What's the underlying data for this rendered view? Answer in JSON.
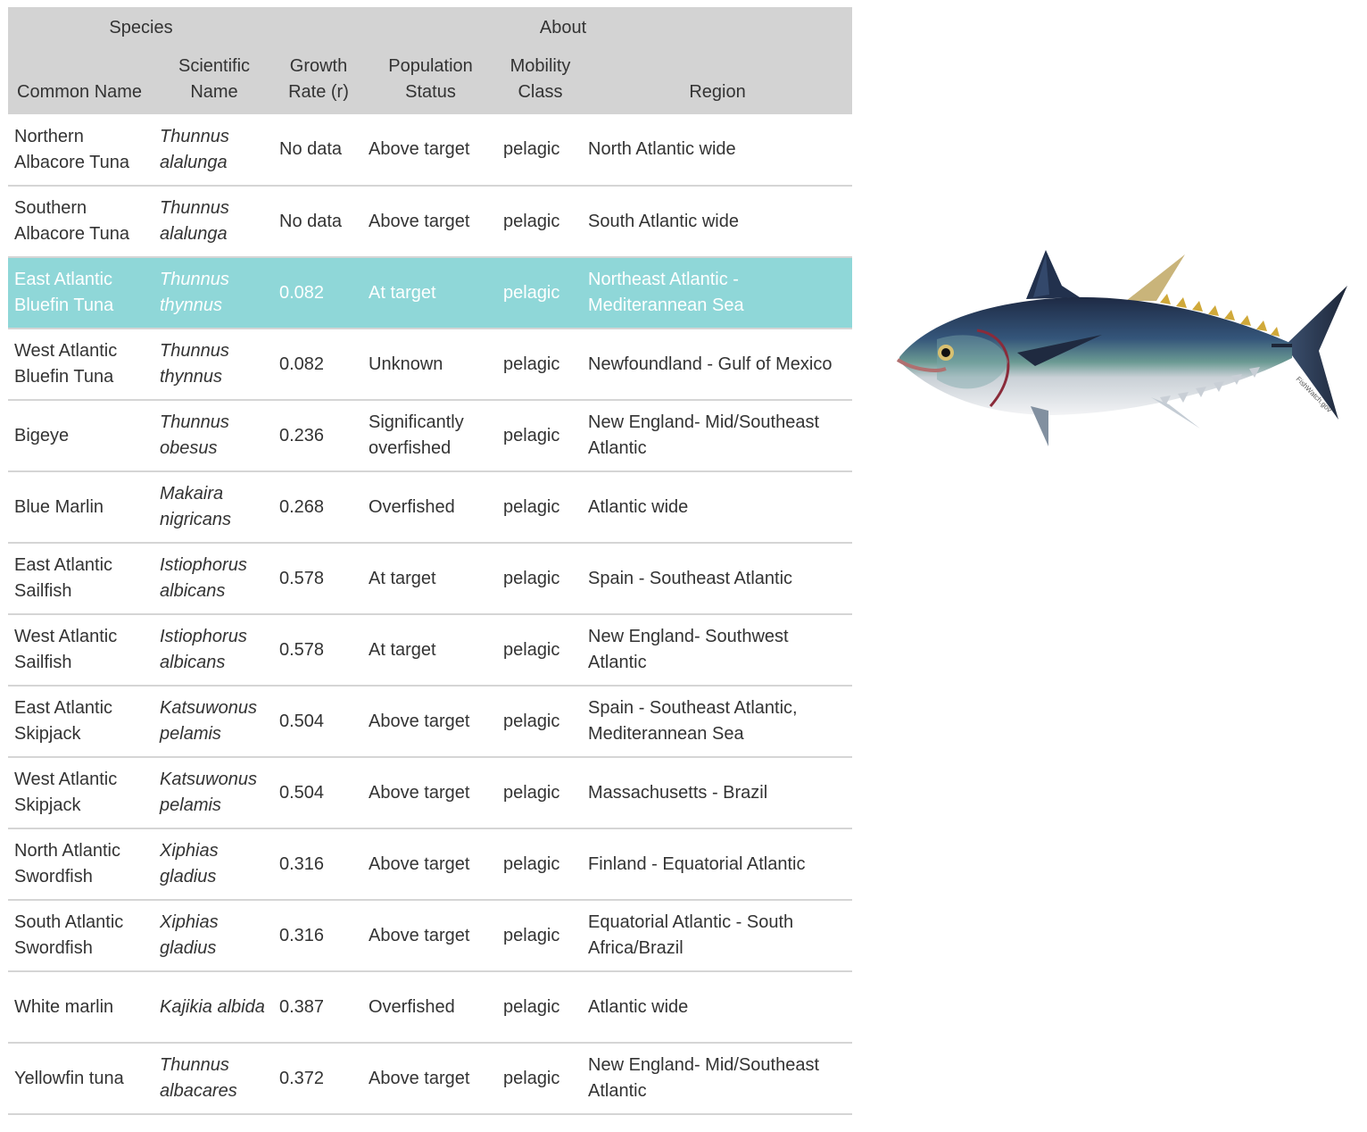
{
  "table": {
    "group_headers": {
      "species": "Species",
      "about": "About"
    },
    "columns": {
      "common_name": "Common Name",
      "scientific_name": "Scientific Name",
      "growth_rate": "Growth Rate (r)",
      "population_status": "Population Status",
      "mobility_class": "Mobility Class",
      "region": "Region"
    },
    "selected_row_index": 2,
    "selected_color": "#8fd7d8",
    "header_color": "#d3d3d3",
    "rows": [
      {
        "common": "Northern Albacore Tuna",
        "scientific": "Thunnus alalunga",
        "growth": "No data",
        "status": "Above target",
        "mobility": "pelagic",
        "region": "North Atlantic wide"
      },
      {
        "common": "Southern Albacore Tuna",
        "scientific": "Thunnus alalunga",
        "growth": "No data",
        "status": "Above target",
        "mobility": "pelagic",
        "region": "South Atlantic wide"
      },
      {
        "common": "East Atlantic Bluefin Tuna",
        "scientific": "Thunnus thynnus",
        "growth": "0.082",
        "status": "At target",
        "mobility": "pelagic",
        "region": "Northeast Atlantic - Mediterannean Sea"
      },
      {
        "common": "West Atlantic Bluefin Tuna",
        "scientific": "Thunnus thynnus",
        "growth": "0.082",
        "status": "Unknown",
        "mobility": "pelagic",
        "region": "Newfoundland - Gulf of Mexico"
      },
      {
        "common": "Bigeye",
        "scientific": "Thunnus obesus",
        "growth": "0.236",
        "status": "Significantly overfished",
        "mobility": "pelagic",
        "region": "New England- Mid/Southeast Atlantic"
      },
      {
        "common": "Blue Marlin",
        "scientific": "Makaira nigricans",
        "growth": "0.268",
        "status": "Overfished",
        "mobility": "pelagic",
        "region": "Atlantic wide"
      },
      {
        "common": "East Atlantic Sailfish",
        "scientific": "Istiophorus albicans",
        "growth": "0.578",
        "status": "At target",
        "mobility": "pelagic",
        "region": "Spain - Southeast Atlantic"
      },
      {
        "common": "West Atlantic Sailfish",
        "scientific": "Istiophorus albicans",
        "growth": "0.578",
        "status": "At target",
        "mobility": "pelagic",
        "region": "New England- Southwest Atlantic"
      },
      {
        "common": "East Atlantic Skipjack",
        "scientific": "Katsuwonus pelamis",
        "growth": "0.504",
        "status": "Above target",
        "mobility": "pelagic",
        "region": "Spain - Southeast Atlantic, Mediterannean Sea"
      },
      {
        "common": "West Atlantic Skipjack",
        "scientific": "Katsuwonus pelamis",
        "growth": "0.504",
        "status": "Above target",
        "mobility": "pelagic",
        "region": "Massachusetts - Brazil"
      },
      {
        "common": "North Atlantic Swordfish",
        "scientific": "Xiphias gladius",
        "growth": "0.316",
        "status": "Above target",
        "mobility": "pelagic",
        "region": "Finland - Equatorial Atlantic"
      },
      {
        "common": "South Atlantic Swordfish",
        "scientific": "Xiphias gladius",
        "growth": "0.316",
        "status": "Above target",
        "mobility": "pelagic",
        "region": "Equatorial Atlantic - South Africa/Brazil"
      },
      {
        "common": "White marlin",
        "scientific": "Kajikia albida",
        "growth": "0.387",
        "status": "Overfished",
        "mobility": "pelagic",
        "region": "Atlantic wide"
      },
      {
        "common": "Yellowfin tuna",
        "scientific": "Thunnus albacares",
        "growth": "0.372",
        "status": "Above target",
        "mobility": "pelagic",
        "region": "New England- Mid/Southeast Atlantic"
      }
    ]
  },
  "illustration": {
    "icon": "bluefin-tuna-illustration",
    "watermark": "FishWatch.gov"
  }
}
